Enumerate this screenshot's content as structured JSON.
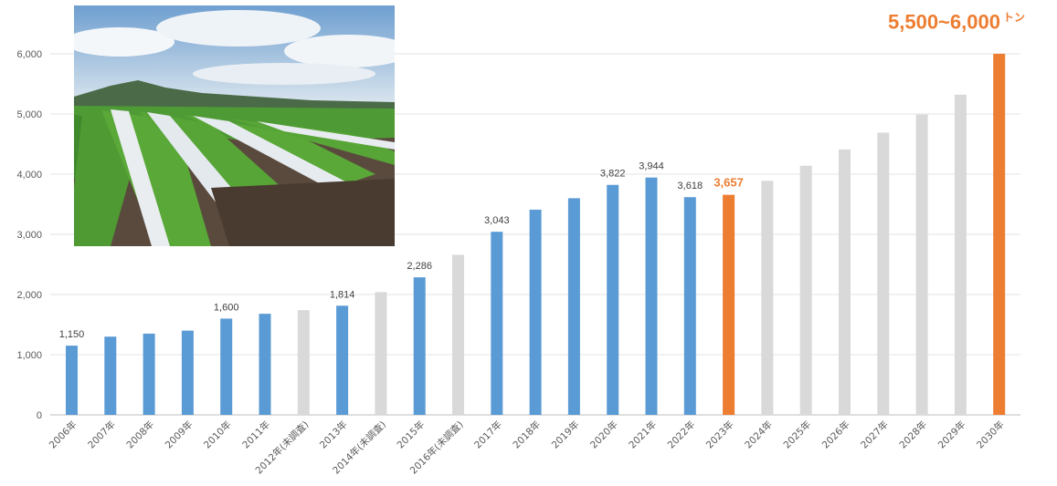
{
  "headline": {
    "value": "5,500~6,000",
    "unit": "トン"
  },
  "photo": {
    "subject": "lettuce-field-photo"
  },
  "chart_data": {
    "type": "bar",
    "title": "",
    "xlabel": "",
    "ylabel": "",
    "ylim": [
      0,
      6000
    ],
    "yticks": [
      "0",
      "1,000",
      "2,000",
      "3,000",
      "4,000",
      "5,000",
      "6,000"
    ],
    "grid": true,
    "legend": "none",
    "colors": {
      "actual": "#5B9BD5",
      "not_surveyed": "#D9D9D9",
      "current": "#ED7D31",
      "projection": "#D9D9D9",
      "target": "#ED7D31"
    },
    "categories": [
      "2006年",
      "2007年",
      "2008年",
      "2009年",
      "2010年",
      "2011年",
      "2012年(未調査)",
      "2013年",
      "2014年(未調査)",
      "2015年",
      "2016年(未調査)",
      "2017年",
      "2018年",
      "2019年",
      "2020年",
      "2021年",
      "2022年",
      "2023年",
      "2024年",
      "2025年",
      "2026年",
      "2027年",
      "2028年",
      "2029年",
      "2030年"
    ],
    "values": [
      1150,
      1300,
      1350,
      1400,
      1600,
      1680,
      1740,
      1814,
      2040,
      2286,
      2660,
      3043,
      3410,
      3600,
      3822,
      3944,
      3618,
      3657,
      3890,
      4140,
      4410,
      4690,
      4990,
      5320,
      6000
    ],
    "kinds": [
      "actual",
      "actual",
      "actual",
      "actual",
      "actual",
      "actual",
      "not_surveyed",
      "actual",
      "not_surveyed",
      "actual",
      "not_surveyed",
      "actual",
      "actual",
      "actual",
      "actual",
      "actual",
      "actual",
      "current",
      "projection",
      "projection",
      "projection",
      "projection",
      "projection",
      "projection",
      "target"
    ],
    "data_labels": [
      "1,150",
      "",
      "",
      "",
      "1,600",
      "",
      "",
      "1,814",
      "",
      "2,286",
      "",
      "3,043",
      "",
      "",
      "3,822",
      "3,944",
      "3,618",
      "3,657",
      "",
      "",
      "",
      "",
      "",
      "",
      ""
    ]
  }
}
